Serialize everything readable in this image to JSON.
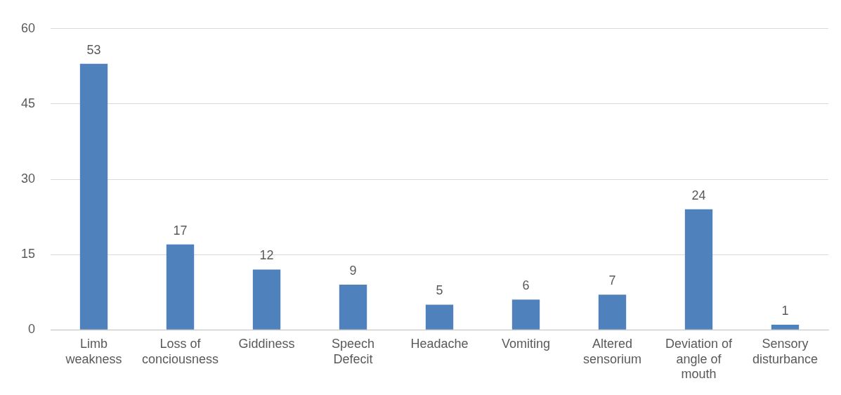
{
  "chart_data": {
    "type": "bar",
    "categories": [
      "Limb weakness",
      "Loss of conciousness",
      "Giddiness",
      "Speech Defecit",
      "Headache",
      "Vomiting",
      "Altered sensorium",
      "Deviation of angle of mouth",
      "Sensory disturbance"
    ],
    "values": [
      53,
      17,
      12,
      9,
      5,
      6,
      7,
      24,
      1
    ],
    "color": "#4f81bd",
    "ylim": [
      0,
      60
    ],
    "yticks": [
      0,
      15,
      30,
      45,
      60
    ],
    "grid": "y",
    "data_labels": true,
    "legend": false
  }
}
